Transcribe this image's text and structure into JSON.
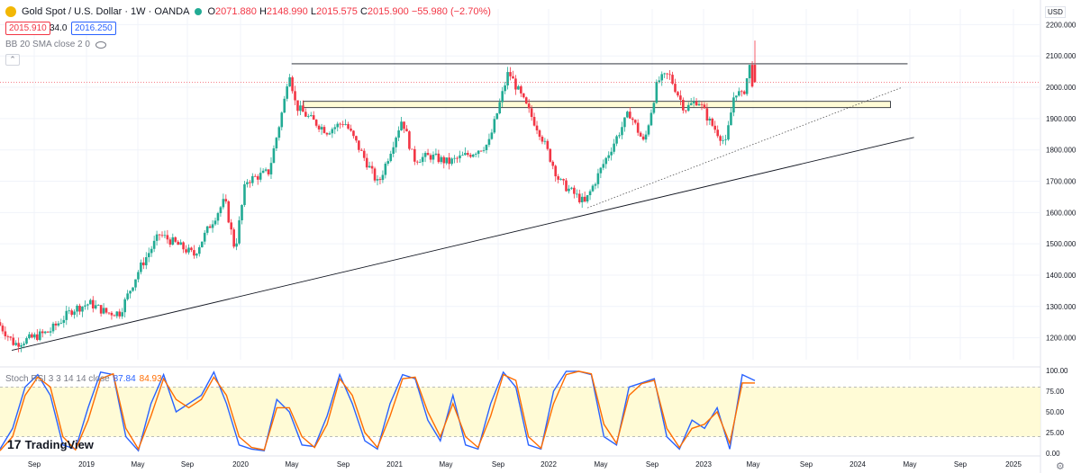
{
  "header": {
    "title": "Gold Spot / U.S. Dollar · 1W · OANDA",
    "ohlc": [
      {
        "k": "O",
        "v": "2071.880"
      },
      {
        "k": "H",
        "v": "2148.990"
      },
      {
        "k": "L",
        "v": "2015.575"
      },
      {
        "k": "C",
        "v": "2015.900"
      }
    ],
    "change": "−55.980 (−2.70%)",
    "sell_price": "2015.910",
    "spread": "34.0",
    "buy_price": "2016.250",
    "indicator": "BB 20 SMA close 2 0",
    "currency": "USD"
  },
  "rsi_header": {
    "name": "Stoch RSI 3 3 14 14 close",
    "k_value": "87.84",
    "d_value": "84.93"
  },
  "brand": {
    "name": "TradingView"
  },
  "colors": {
    "up": "#22ab94",
    "down": "#f23645",
    "k_line": "#2962ff",
    "d_line": "#ff6d00",
    "band_fill": "#fff9dc"
  },
  "chart_data": [
    {
      "type": "candlestick",
      "title": "Gold Spot / U.S. Dollar · 1W · OANDA",
      "y_ticks": [
        "2200.000",
        "2100.000",
        "2000.000",
        "1900.000",
        "1800.000",
        "1700.000",
        "1600.000",
        "1500.000",
        "1400.000",
        "1300.000",
        "1200.000"
      ],
      "y_range": [
        1130,
        2250
      ],
      "x_ticks": [
        "Sep",
        "2019",
        "May",
        "Sep",
        "2020",
        "May",
        "Sep",
        "2021",
        "May",
        "Sep",
        "2022",
        "May",
        "Sep",
        "2023",
        "May",
        "Sep",
        "2024",
        "May",
        "Sep",
        "2025"
      ],
      "x_range": [
        "2018-07-01",
        "2025-12-31"
      ],
      "path": [
        [
          "2018-07-01",
          1250
        ],
        [
          "2018-08-15",
          1180
        ],
        [
          "2018-10-01",
          1200
        ],
        [
          "2018-11-15",
          1220
        ],
        [
          "2019-01-15",
          1290
        ],
        [
          "2019-03-01",
          1310
        ],
        [
          "2019-04-15",
          1280
        ],
        [
          "2019-05-20",
          1280
        ],
        [
          "2019-07-10",
          1420
        ],
        [
          "2019-09-01",
          1530
        ],
        [
          "2019-10-15",
          1500
        ],
        [
          "2019-12-01",
          1465
        ],
        [
          "2020-01-10",
          1555
        ],
        [
          "2020-02-20",
          1640
        ],
        [
          "2020-03-18",
          1480
        ],
        [
          "2020-04-15",
          1700
        ],
        [
          "2020-06-15",
          1730
        ],
        [
          "2020-07-25",
          1950
        ],
        [
          "2020-08-07",
          2060
        ],
        [
          "2020-08-25",
          1940
        ],
        [
          "2020-10-01",
          1900
        ],
        [
          "2020-11-15",
          1860
        ],
        [
          "2020-12-31",
          1890
        ],
        [
          "2021-02-01",
          1820
        ],
        [
          "2021-03-30",
          1690
        ],
        [
          "2021-06-01",
          1900
        ],
        [
          "2021-07-01",
          1770
        ],
        [
          "2021-08-15",
          1780
        ],
        [
          "2021-10-01",
          1760
        ],
        [
          "2021-12-01",
          1790
        ],
        [
          "2022-01-15",
          1820
        ],
        [
          "2022-03-08",
          2050
        ],
        [
          "2022-04-15",
          1960
        ],
        [
          "2022-06-01",
          1850
        ],
        [
          "2022-07-20",
          1700
        ],
        [
          "2022-09-25",
          1630
        ],
        [
          "2022-11-15",
          1760
        ],
        [
          "2023-01-20",
          1920
        ],
        [
          "2023-02-28",
          1820
        ],
        [
          "2023-04-05",
          2020
        ],
        [
          "2023-05-05",
          2040
        ],
        [
          "2023-06-15",
          1930
        ],
        [
          "2023-07-20",
          1960
        ],
        [
          "2023-08-20",
          1890
        ],
        [
          "2023-10-01",
          1820
        ],
        [
          "2023-10-25",
          1990
        ],
        [
          "2023-11-15",
          1970
        ],
        [
          "2023-12-04",
          2071
        ],
        [
          "2023-12-10",
          2016
        ]
      ],
      "last_candle": {
        "date": "2023-12-10",
        "open": 2071.88,
        "high": 2148.99,
        "low": 2015.575,
        "close": 2015.9
      },
      "resistance_line": {
        "from": "2020-08-07",
        "to": "2025-01-15",
        "price": 2075
      },
      "rectangle_zone": {
        "from": "2020-09-07",
        "to": "2024-12-01",
        "top": 1955,
        "bottom": 1935
      },
      "trend_line_solid": [
        [
          "2018-08-01",
          1160
        ],
        [
          "2025-02-01",
          1840
        ]
      ],
      "trend_line_dotted": [
        [
          "2022-09-25",
          1615
        ],
        [
          "2025-01-01",
          2000
        ]
      ]
    },
    {
      "type": "line",
      "title": "Stoch RSI 3 3 14 14 close",
      "y_ticks": [
        "100.00",
        "75.00",
        "50.00",
        "25.00",
        "0.00"
      ],
      "y_range": [
        0,
        100
      ],
      "band": [
        20,
        80
      ],
      "series": [
        {
          "name": "K",
          "values": [
            5,
            30,
            80,
            95,
            70,
            10,
            5,
            55,
            98,
            95,
            20,
            3,
            60,
            95,
            50,
            60,
            70,
            98,
            60,
            10,
            5,
            3,
            65,
            50,
            10,
            8,
            45,
            95,
            60,
            15,
            5,
            60,
            95,
            90,
            40,
            15,
            70,
            10,
            5,
            60,
            98,
            80,
            10,
            5,
            75,
            99,
            99,
            95,
            20,
            10,
            80,
            85,
            90,
            20,
            5,
            40,
            30,
            55,
            5,
            95,
            87.84
          ]
        },
        {
          "name": "D",
          "values": [
            3,
            20,
            70,
            92,
            80,
            20,
            4,
            40,
            90,
            96,
            30,
            5,
            45,
            90,
            65,
            55,
            65,
            92,
            70,
            20,
            7,
            4,
            55,
            55,
            20,
            7,
            35,
            90,
            70,
            25,
            7,
            45,
            90,
            92,
            50,
            20,
            60,
            20,
            7,
            45,
            95,
            88,
            20,
            6,
            60,
            95,
            99,
            96,
            35,
            12,
            70,
            84,
            88,
            30,
            7,
            30,
            35,
            50,
            12,
            85,
            84.93
          ]
        }
      ]
    }
  ]
}
